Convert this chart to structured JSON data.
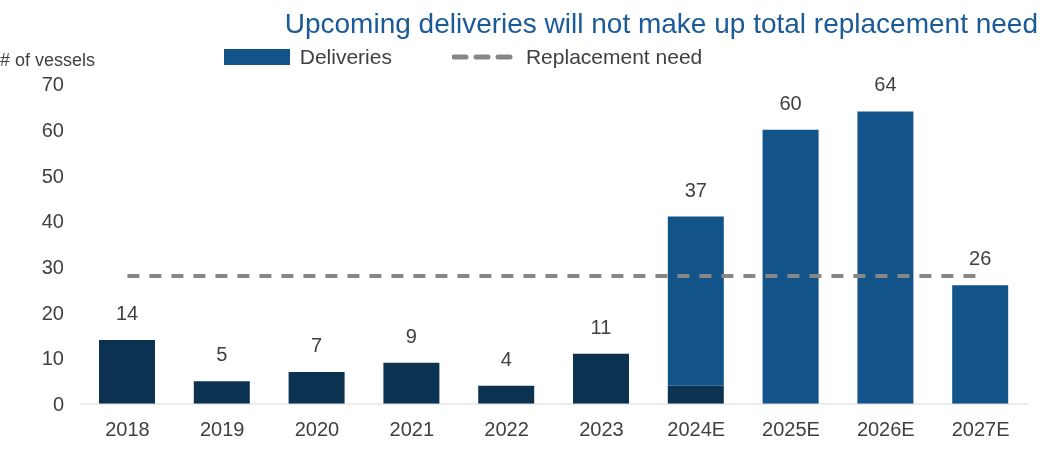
{
  "chart_data": {
    "type": "bar",
    "title": "Upcoming deliveries will not make up total replacement need",
    "ylabel": "# of vessels",
    "categories": [
      "2018",
      "2019",
      "2020",
      "2021",
      "2022",
      "2023",
      "2024E",
      "2025E",
      "2026E",
      "2027E"
    ],
    "stacked": true,
    "ylim": [
      0,
      70
    ],
    "yticks": [
      0,
      10,
      20,
      30,
      40,
      50,
      60,
      70
    ],
    "grid": false,
    "legend": "top",
    "series": [
      {
        "color": "#0b3251",
        "values": [
          14,
          5,
          7,
          9,
          4,
          11,
          4,
          null,
          null,
          null
        ],
        "value_labels": [
          "14",
          "5",
          "7",
          "9",
          "4",
          "11",
          null,
          null,
          null,
          null
        ]
      },
      {
        "name": "Deliveries",
        "color": "#12548a",
        "values": [
          null,
          null,
          null,
          null,
          null,
          null,
          37,
          60,
          64,
          26
        ],
        "value_labels": [
          null,
          null,
          null,
          null,
          null,
          null,
          "37",
          "60",
          "64",
          "26"
        ]
      },
      {
        "name": "Replacement need",
        "type": "line",
        "line_style": "dashed",
        "color": "#878787",
        "values": [
          28,
          28,
          28,
          28,
          28,
          28,
          28,
          28,
          28,
          28
        ]
      }
    ]
  }
}
